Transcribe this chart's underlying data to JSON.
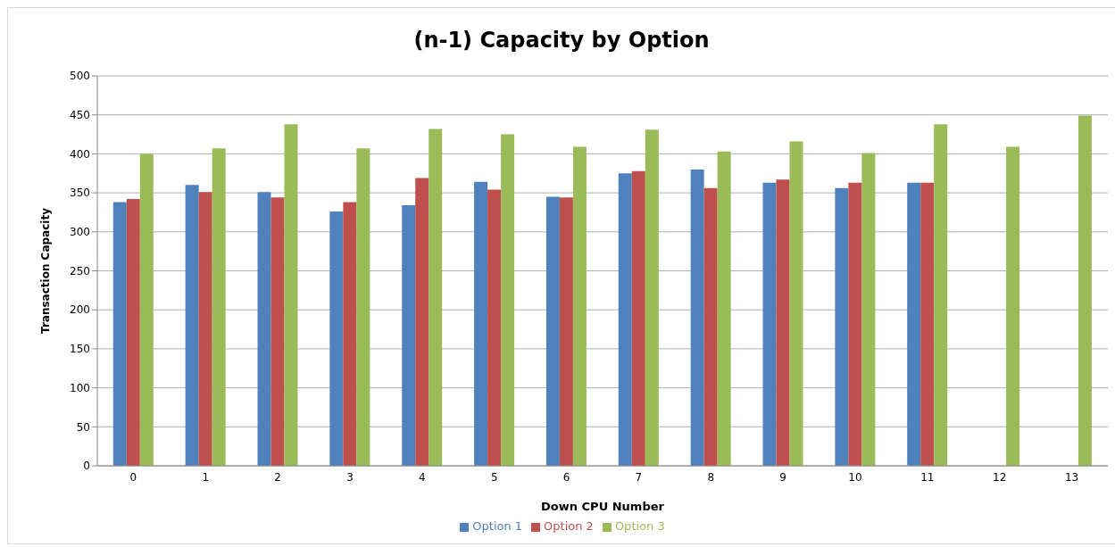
{
  "chart_data": {
    "type": "bar",
    "title": "(n-1) Capacity by Option",
    "xlabel": "Down CPU  Number",
    "ylabel": "Transaction  Capacity",
    "categories": [
      "0",
      "1",
      "2",
      "3",
      "4",
      "5",
      "6",
      "7",
      "8",
      "9",
      "10",
      "11",
      "12",
      "13"
    ],
    "series": [
      {
        "name": "Option 1",
        "color": "#4f81bd",
        "values": [
          338,
          360,
          351,
          326,
          334,
          364,
          345,
          375,
          380,
          363,
          356,
          363,
          null,
          null
        ]
      },
      {
        "name": "Option 2",
        "color": "#c0504d",
        "values": [
          342,
          351,
          344,
          338,
          369,
          354,
          344,
          378,
          356,
          367,
          363,
          363,
          null,
          null
        ]
      },
      {
        "name": "Option 3",
        "color": "#9bbb59",
        "values": [
          400,
          407,
          438,
          407,
          432,
          425,
          409,
          431,
          403,
          416,
          401,
          438,
          409,
          449
        ]
      }
    ],
    "ylim": [
      0,
      500
    ],
    "yticks": [
      0,
      50,
      100,
      150,
      200,
      250,
      300,
      350,
      400,
      450,
      500
    ],
    "grid": "y",
    "legend": "bottom"
  }
}
